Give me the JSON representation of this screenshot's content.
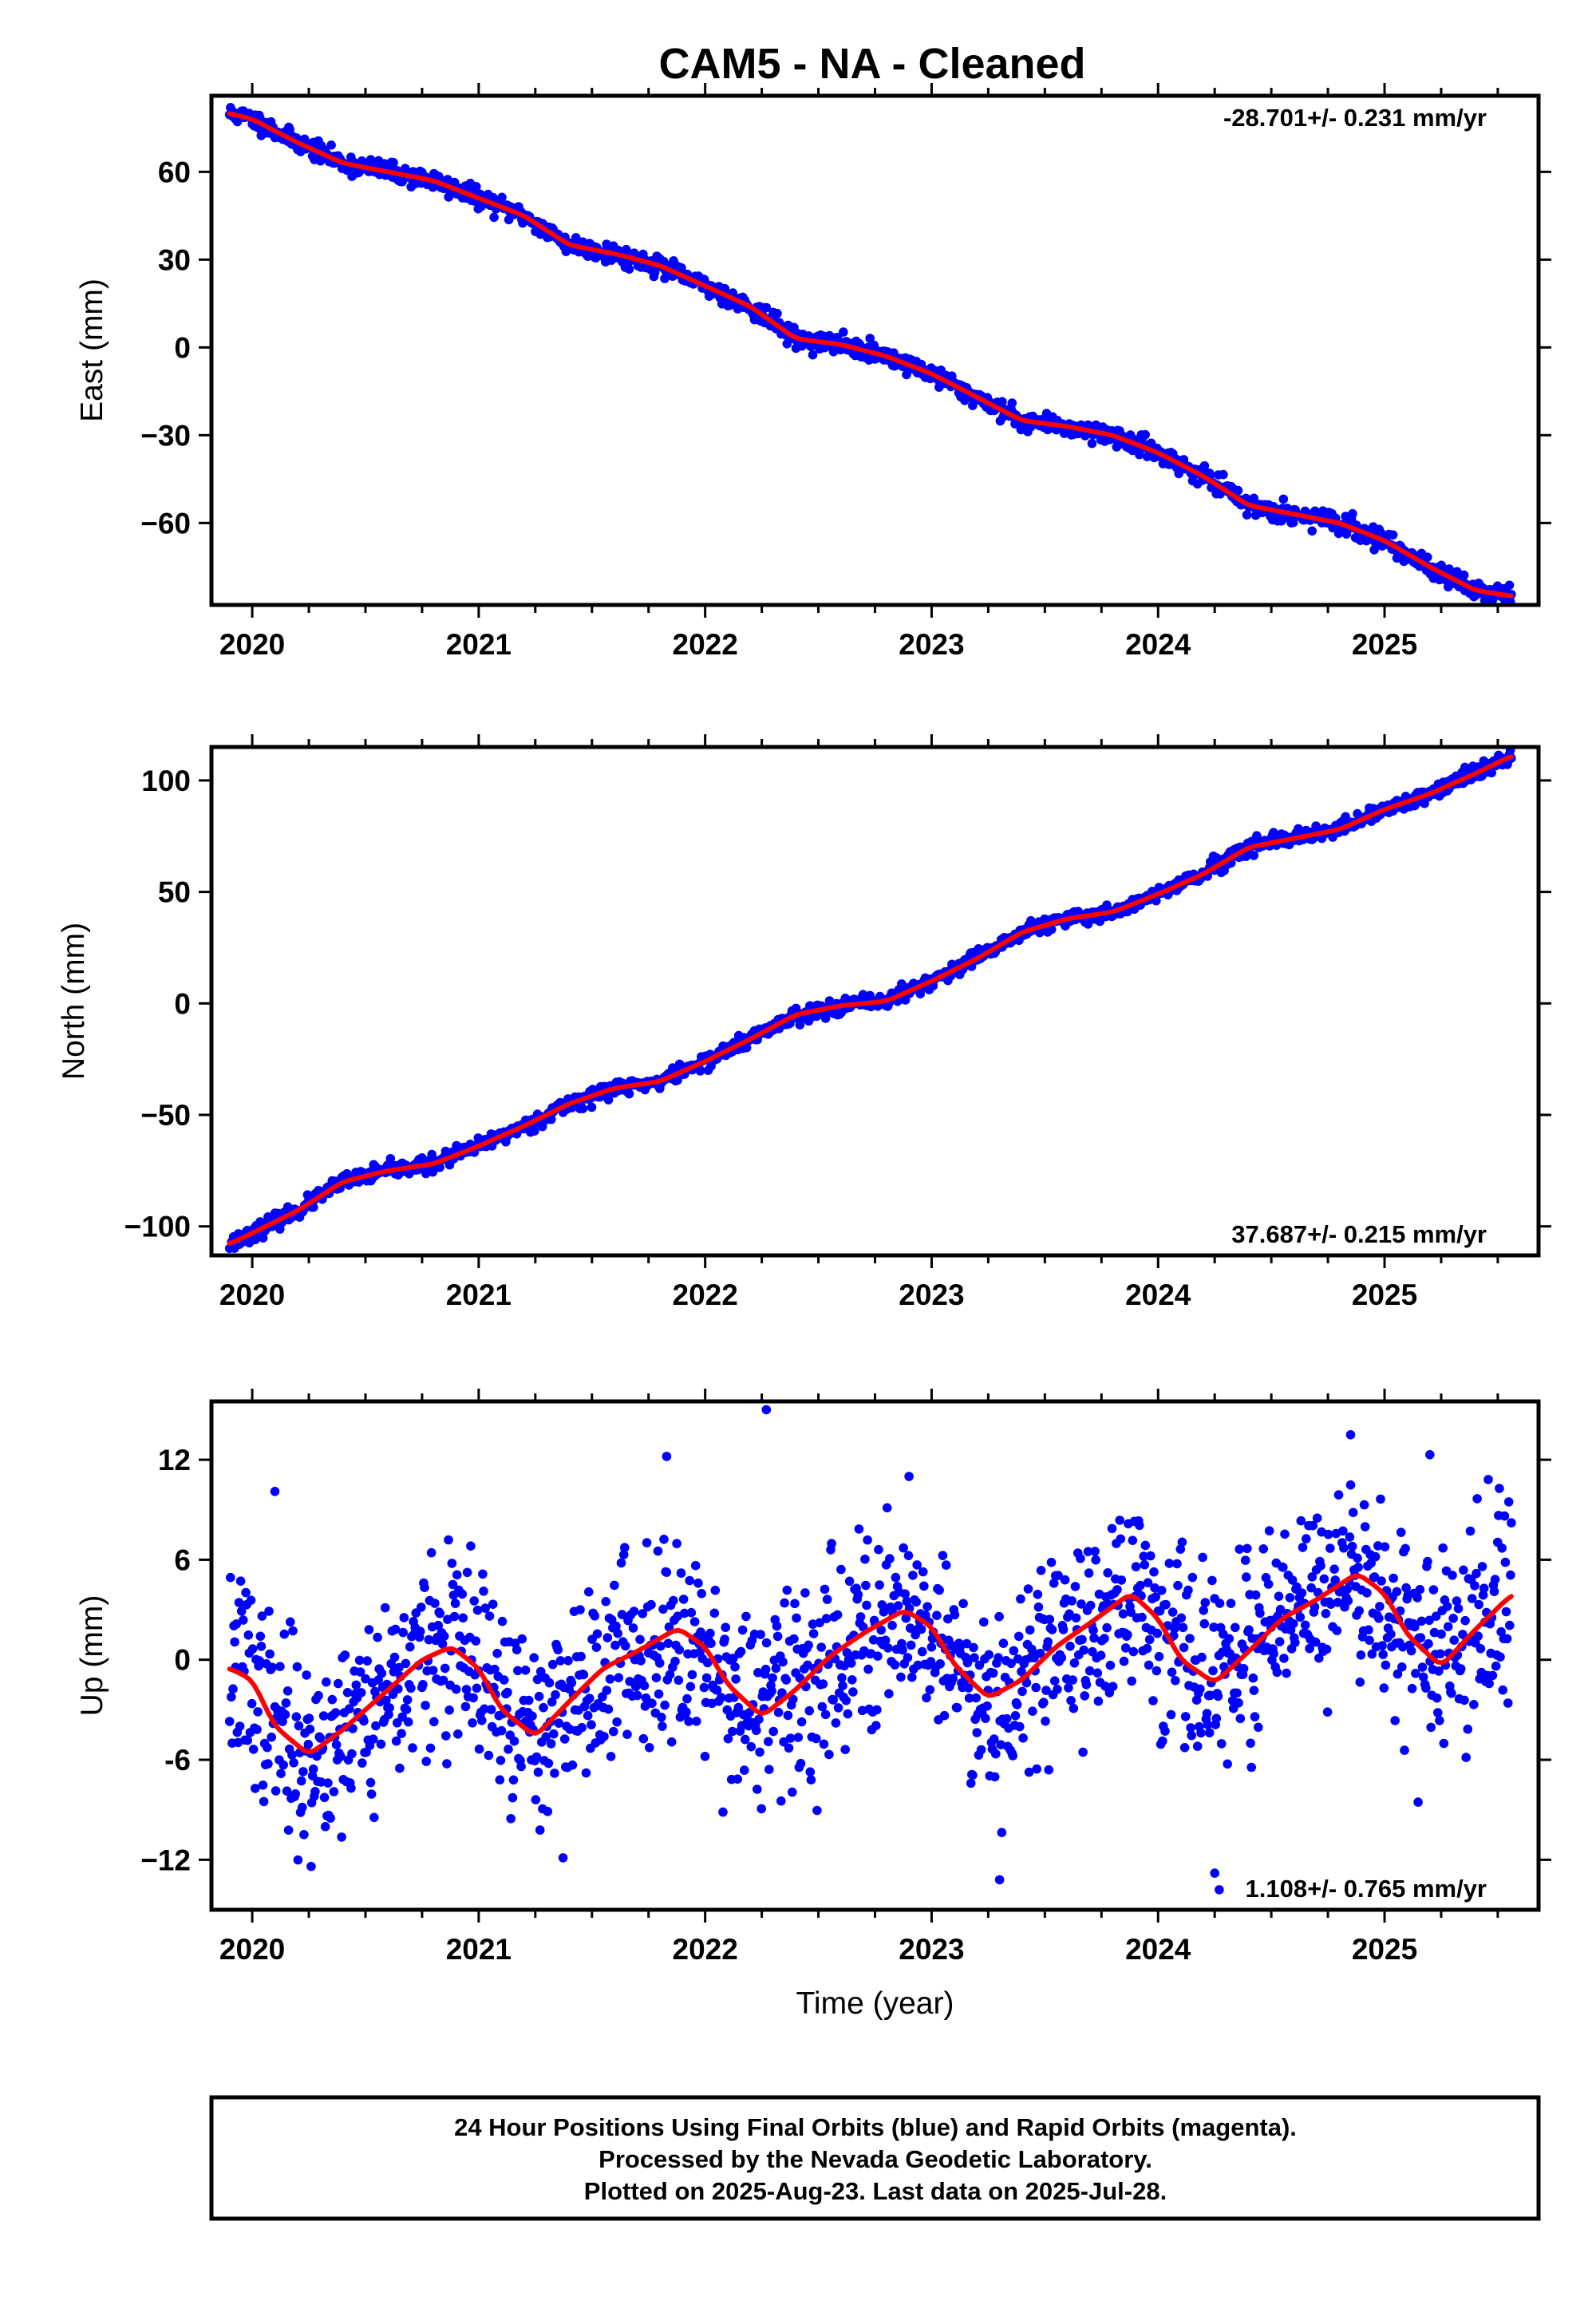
{
  "title": "CAM5  - NA - Cleaned",
  "colors": {
    "points": "#0000ff",
    "fit": "#ff0000",
    "frame": "#000000"
  },
  "footer": {
    "lines": [
      "24 Hour Positions Using Final Orbits (blue) and Rapid Orbits (magenta).",
      "Processed by the Nevada Geodetic Laboratory.",
      "Plotted on 2025-Aug-23. Last data on 2025-Jul-28."
    ]
  },
  "chart_data": [
    {
      "type": "scatter",
      "name": "east",
      "ylabel": "East (mm)",
      "xlabel": "",
      "xlim": [
        2019.82,
        2025.68
      ],
      "ylim": [
        -88,
        86
      ],
      "xticks": [
        2020,
        2021,
        2022,
        2023,
        2024,
        2025
      ],
      "yticks": [
        60,
        30,
        0,
        -30,
        -60
      ],
      "ytick_labels": [
        "60",
        "30",
        "0",
        "−30",
        "−60"
      ],
      "rate_text": "-28.701+/- 0.231 mm/yr",
      "rate_position": "top-right",
      "fit_x": [
        2019.9,
        2020.0,
        2020.2,
        2020.4,
        2020.6,
        2020.8,
        2021.0,
        2021.2,
        2021.4,
        2021.6,
        2021.8,
        2022.0,
        2022.2,
        2022.4,
        2022.6,
        2022.8,
        2023.0,
        2023.2,
        2023.4,
        2023.6,
        2023.8,
        2024.0,
        2024.2,
        2024.4,
        2024.6,
        2024.8,
        2025.0,
        2025.2,
        2025.4,
        2025.56
      ],
      "fit_y": [
        80,
        78,
        70,
        63,
        60,
        57,
        51,
        45,
        35,
        32,
        28,
        21,
        14,
        3,
        1,
        -3,
        -9,
        -17,
        -25,
        -27,
        -30,
        -36,
        -44,
        -54,
        -57,
        -60,
        -66,
        -75,
        -83,
        -85
      ],
      "points": {
        "x_start": 2019.9,
        "x_end": 2025.56,
        "count": 1300,
        "noise_mm": 1.6,
        "seed": 11,
        "outliers": []
      }
    },
    {
      "type": "scatter",
      "name": "north",
      "ylabel": "North (mm)",
      "xlabel": "",
      "xlim": [
        2019.82,
        2025.68
      ],
      "ylim": [
        -113,
        115
      ],
      "xticks": [
        2020,
        2021,
        2022,
        2023,
        2024,
        2025
      ],
      "yticks": [
        100,
        50,
        0,
        -50,
        -100
      ],
      "ytick_labels": [
        "100",
        "50",
        "0",
        "−50",
        "−100"
      ],
      "rate_text": "37.687+/- 0.215 mm/yr",
      "rate_position": "bottom-right",
      "fit_x": [
        2019.9,
        2020.0,
        2020.2,
        2020.4,
        2020.6,
        2020.8,
        2021.0,
        2021.2,
        2021.4,
        2021.6,
        2021.8,
        2022.0,
        2022.2,
        2022.4,
        2022.6,
        2022.8,
        2023.0,
        2023.2,
        2023.4,
        2023.6,
        2023.8,
        2024.0,
        2024.2,
        2024.4,
        2024.6,
        2024.8,
        2025.0,
        2025.2,
        2025.4,
        2025.56
      ],
      "fit_y": [
        -108,
        -103,
        -93,
        -80,
        -75,
        -72,
        -64,
        -55,
        -45,
        -38,
        -35,
        -26,
        -16,
        -5,
        -1,
        1,
        10,
        20,
        32,
        38,
        41,
        49,
        58,
        70,
        74,
        78,
        87,
        94,
        103,
        111
      ],
      "points": {
        "x_start": 2019.9,
        "x_end": 2025.56,
        "count": 1300,
        "noise_mm": 1.7,
        "seed": 23,
        "outliers": []
      }
    },
    {
      "type": "scatter",
      "name": "up",
      "ylabel": "Up (mm)",
      "xlabel": "Time (year)",
      "xlim": [
        2019.82,
        2025.68
      ],
      "ylim": [
        -15,
        15.5
      ],
      "xticks": [
        2020,
        2021,
        2022,
        2023,
        2024,
        2025
      ],
      "yticks": [
        12,
        6,
        0,
        -6,
        -12
      ],
      "ytick_labels": [
        "12",
        "6",
        "0",
        "-6",
        "−12"
      ],
      "rate_text": "1.108+/- 0.765 mm/yr",
      "rate_position": "bottom-right",
      "fit_x": [
        2019.9,
        2020.0,
        2020.1,
        2020.25,
        2020.4,
        2020.6,
        2020.75,
        2020.88,
        2021.0,
        2021.1,
        2021.25,
        2021.4,
        2021.55,
        2021.7,
        2021.88,
        2022.0,
        2022.1,
        2022.25,
        2022.4,
        2022.55,
        2022.7,
        2022.88,
        2023.0,
        2023.1,
        2023.25,
        2023.4,
        2023.55,
        2023.7,
        2023.88,
        2024.0,
        2024.1,
        2024.25,
        2024.4,
        2024.55,
        2024.7,
        2024.88,
        2025.0,
        2025.1,
        2025.25,
        2025.4,
        2025.56
      ],
      "fit_y": [
        -0.5,
        -1.2,
        -4.0,
        -5.7,
        -4.2,
        -1.8,
        0.0,
        0.8,
        -0.5,
        -3.0,
        -4.6,
        -2.5,
        -0.5,
        0.5,
        1.9,
        0.8,
        -1.5,
        -3.4,
        -1.8,
        0.2,
        1.6,
        3.0,
        2.0,
        -0.3,
        -2.3,
        -1.2,
        0.8,
        2.2,
        4.0,
        2.5,
        0.0,
        -1.4,
        0.5,
        2.5,
        3.6,
        5.2,
        4.0,
        1.5,
        -0.4,
        1.8,
        3.9
      ],
      "points": {
        "x_start": 2019.9,
        "x_end": 2025.56,
        "count": 1500,
        "noise_mm": 2.9,
        "seed": 37,
        "outliers": [
          [
            2022.27,
            15.0
          ],
          [
            2024.27,
            -13.8
          ],
          [
            2020.26,
            -12.4
          ],
          [
            2024.25,
            -12.8
          ],
          [
            2021.83,
            12.2
          ],
          [
            2024.85,
            13.5
          ],
          [
            2025.2,
            12.3
          ],
          [
            2023.3,
            -13.2
          ],
          [
            2022.9,
            11.0
          ],
          [
            2020.1,
            10.1
          ]
        ]
      }
    }
  ]
}
